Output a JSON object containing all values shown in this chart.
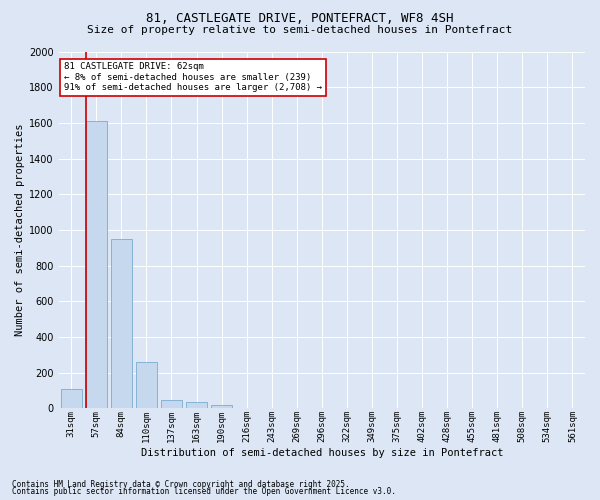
{
  "title1": "81, CASTLEGATE DRIVE, PONTEFRACT, WF8 4SH",
  "title2": "Size of property relative to semi-detached houses in Pontefract",
  "xlabel": "Distribution of semi-detached houses by size in Pontefract",
  "ylabel": "Number of semi-detached properties",
  "categories": [
    "31sqm",
    "57sqm",
    "84sqm",
    "110sqm",
    "137sqm",
    "163sqm",
    "190sqm",
    "216sqm",
    "243sqm",
    "269sqm",
    "296sqm",
    "322sqm",
    "349sqm",
    "375sqm",
    "402sqm",
    "428sqm",
    "455sqm",
    "481sqm",
    "508sqm",
    "534sqm",
    "561sqm"
  ],
  "values": [
    110,
    1610,
    950,
    260,
    45,
    35,
    20,
    0,
    0,
    0,
    0,
    0,
    0,
    0,
    0,
    0,
    0,
    0,
    0,
    0,
    0
  ],
  "bar_color": "#c5d8ee",
  "bar_edge_color": "#7aabcf",
  "highlight_color": "#cc0000",
  "ylim": [
    0,
    2000
  ],
  "yticks": [
    0,
    200,
    400,
    600,
    800,
    1000,
    1200,
    1400,
    1600,
    1800,
    2000
  ],
  "annotation_title": "81 CASTLEGATE DRIVE: 62sqm",
  "annotation_line1": "← 8% of semi-detached houses are smaller (239)",
  "annotation_line2": "91% of semi-detached houses are larger (2,708) →",
  "annotation_box_color": "#cc0000",
  "vline_x_index": 1,
  "footnote1": "Contains HM Land Registry data © Crown copyright and database right 2025.",
  "footnote2": "Contains public sector information licensed under the Open Government Licence v3.0.",
  "bg_color": "#dce6f5",
  "plot_bg_color": "#dce6f5",
  "grid_color": "#ffffff",
  "title1_fontsize": 9,
  "title2_fontsize": 8,
  "ylabel_fontsize": 7.5,
  "xlabel_fontsize": 7.5,
  "ytick_fontsize": 7,
  "xtick_fontsize": 6.5,
  "annot_fontsize": 6.5,
  "footnote_fontsize": 5.5
}
